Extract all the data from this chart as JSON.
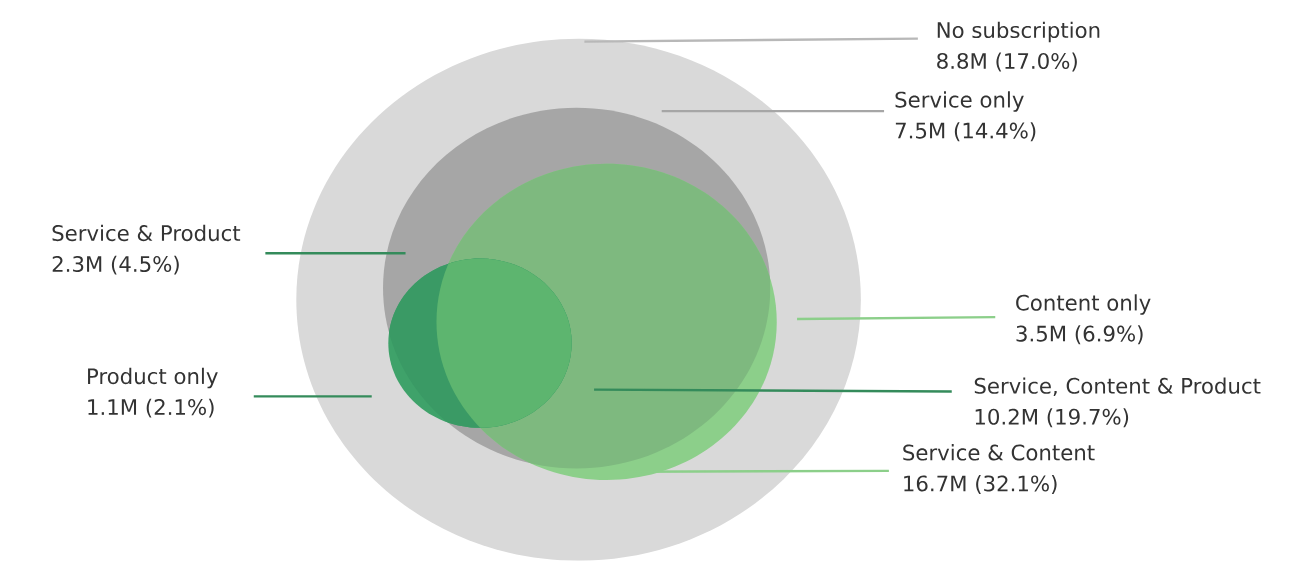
{
  "chart_data": {
    "type": "other",
    "categories": [
      "No subscription",
      "Service only",
      "Service & Product",
      "Content only",
      "Product only",
      "Service, Content & Product",
      "Service & Content"
    ],
    "values": [
      8800000,
      7500000,
      2300000,
      3500000,
      1100000,
      10200000,
      16700000
    ],
    "value_labels": [
      "8.8M (17.0%)",
      "7.5M (14.4%)",
      "2.3M (4.5%)",
      "3.5M (6.9%)",
      "1.1M (2.1%)",
      "10.2M (19.7%)",
      "16.7M (32.1%)"
    ],
    "colors": [
      "#d9d9d9",
      "#a6a6a6",
      "#3a9a65",
      "#8ccf8a",
      "#3fa26a",
      "#5db56f",
      "#7eb97f"
    ]
  }
}
